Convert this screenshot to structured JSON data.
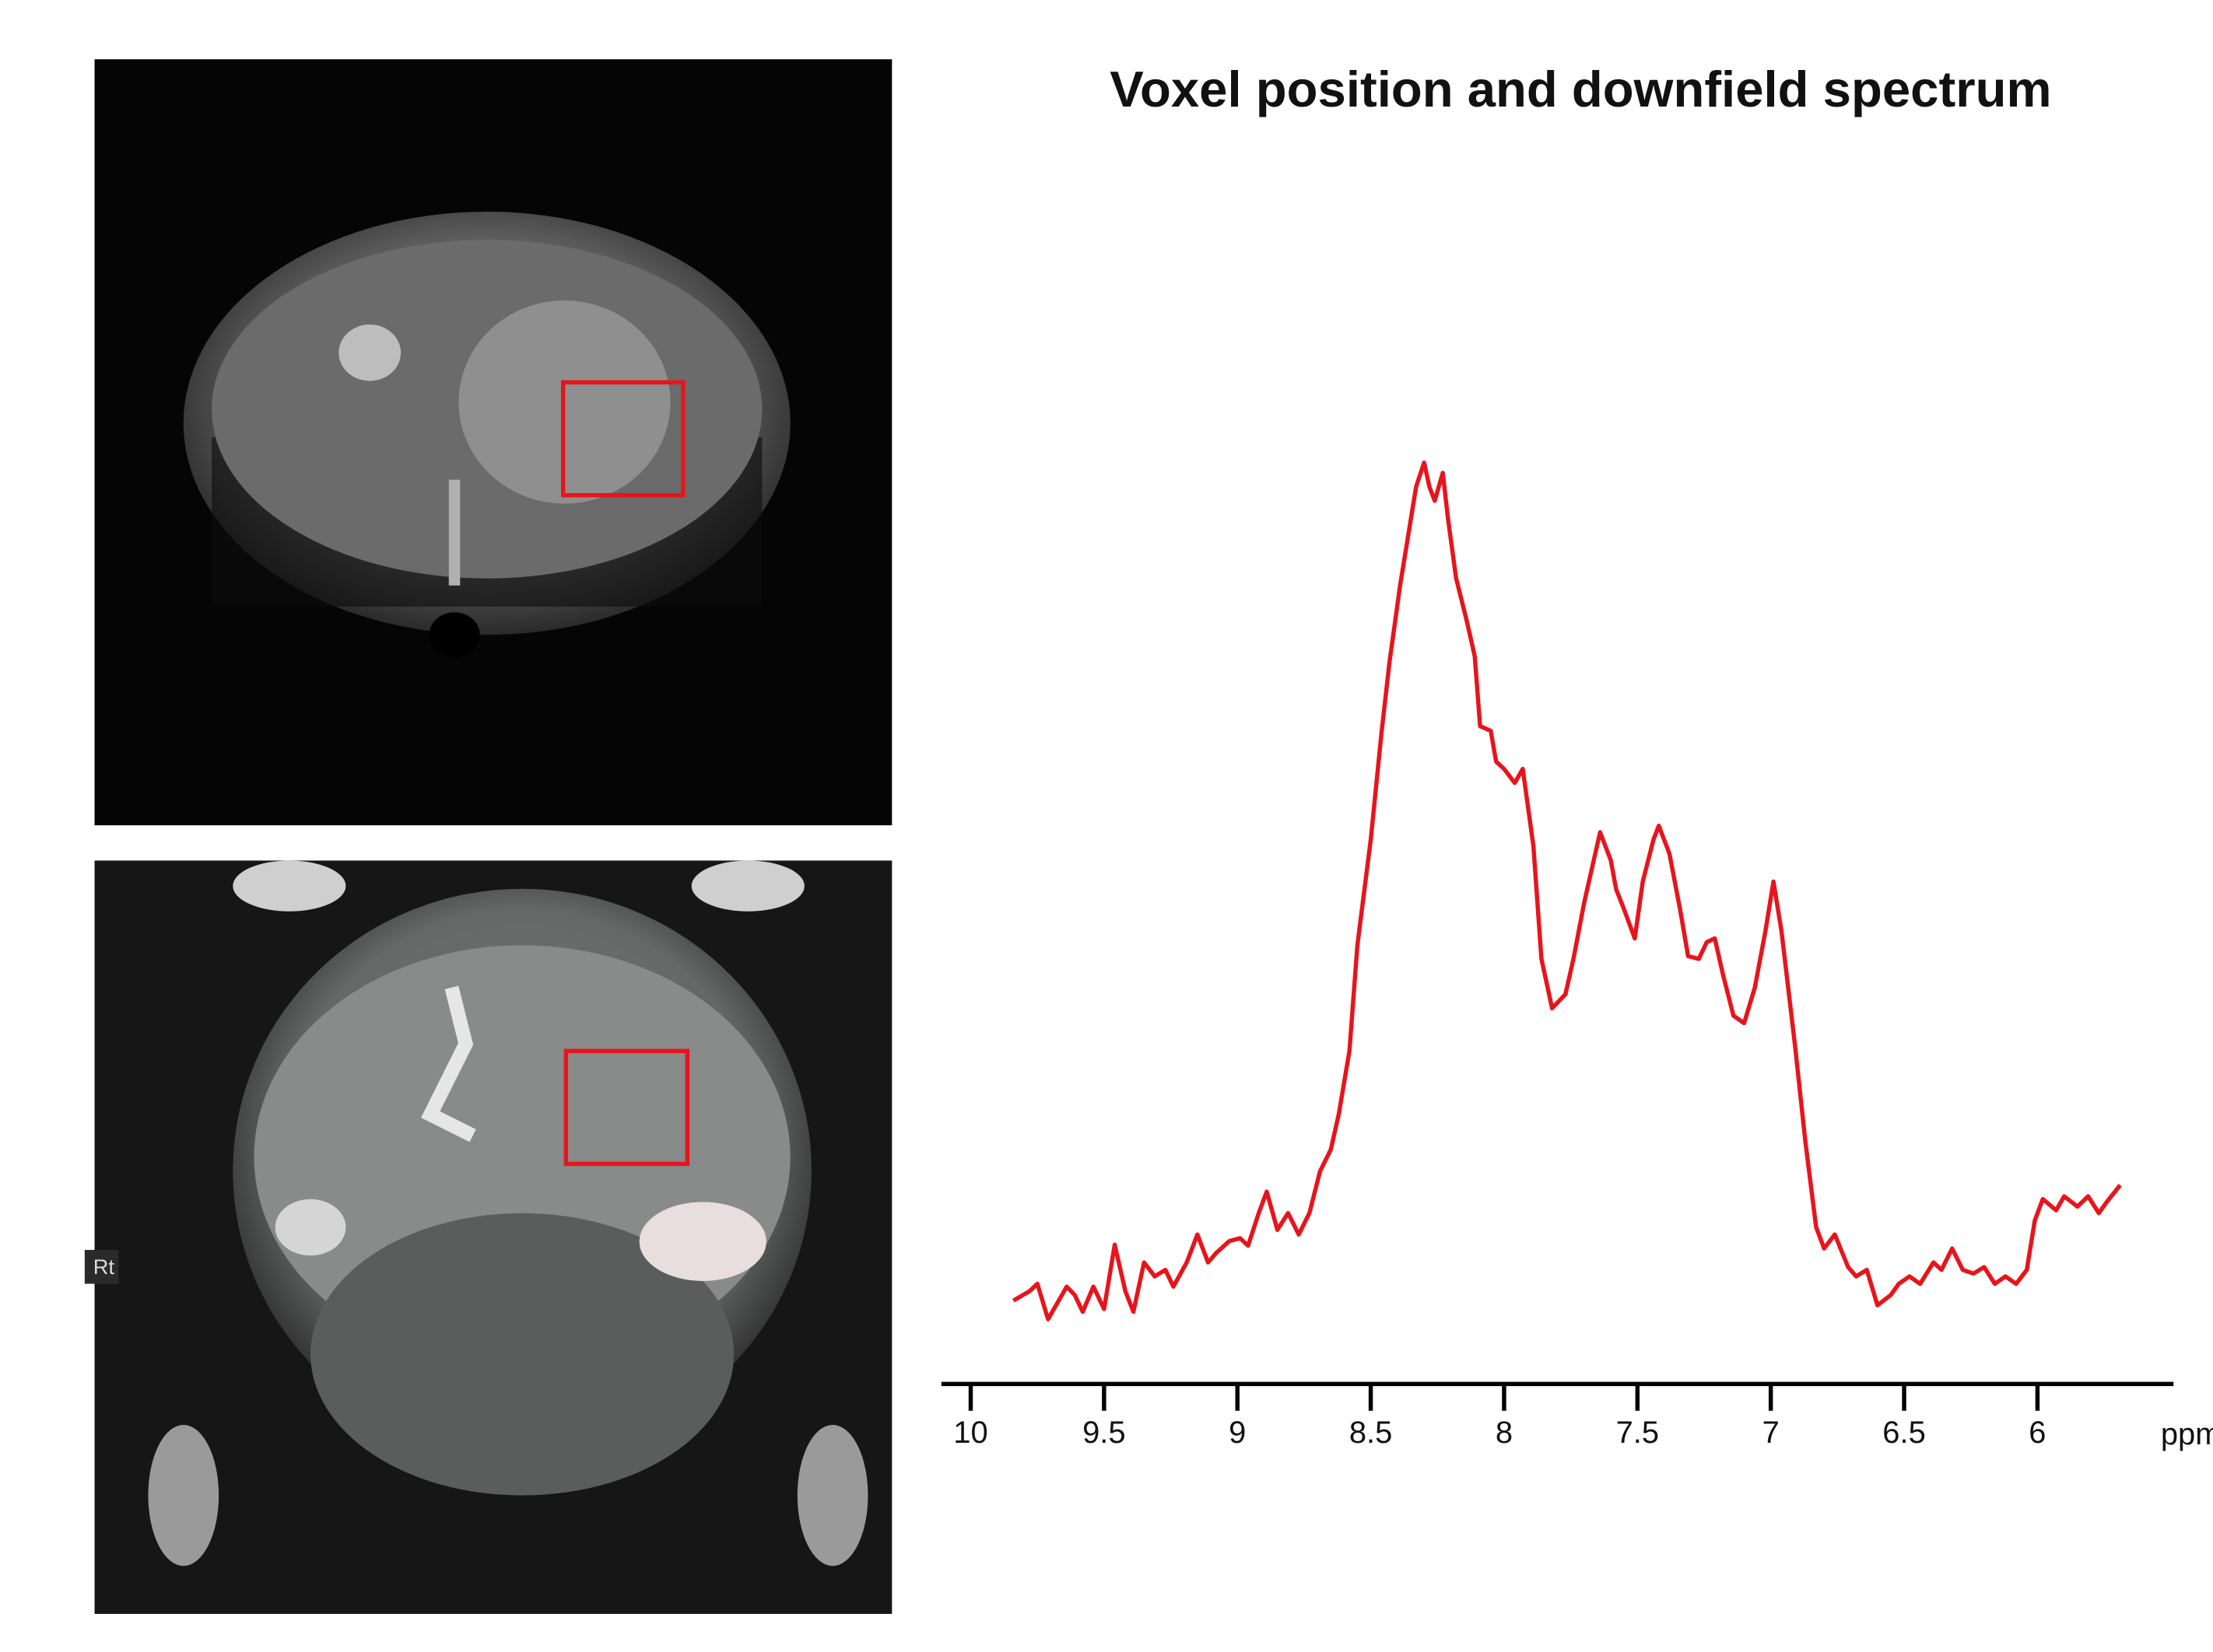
{
  "chart_data": {
    "type": "line",
    "title": "Voxel position and downfield spectrum",
    "x_label": "ppm",
    "annotation": "Rt",
    "color": "#e8141c",
    "xlim": [
      10.11,
      5.49
    ],
    "xticks": [
      10,
      9.5,
      9,
      8.5,
      8,
      7.5,
      7,
      6.5,
      6
    ],
    "ylim": [
      0,
      100
    ],
    "x": [
      9.84,
      9.78,
      9.75,
      9.71,
      9.68,
      9.64,
      9.61,
      9.58,
      9.54,
      9.5,
      9.46,
      9.42,
      9.39,
      9.35,
      9.31,
      9.27,
      9.24,
      9.19,
      9.15,
      9.11,
      9.08,
      9.03,
      8.99,
      8.96,
      8.92,
      8.89,
      8.85,
      8.81,
      8.77,
      8.73,
      8.69,
      8.65,
      8.62,
      8.58,
      8.55,
      8.5,
      8.46,
      8.43,
      8.39,
      8.36,
      8.33,
      8.3,
      8.28,
      8.26,
      8.23,
      8.21,
      8.18,
      8.14,
      8.11,
      8.09,
      8.05,
      8.03,
      8.0,
      7.96,
      7.93,
      7.89,
      7.86,
      7.82,
      7.77,
      7.74,
      7.7,
      7.67,
      7.64,
      7.6,
      7.58,
      7.55,
      7.51,
      7.48,
      7.44,
      7.42,
      7.38,
      7.34,
      7.31,
      7.27,
      7.24,
      7.21,
      7.18,
      7.14,
      7.1,
      7.06,
      7.02,
      6.99,
      6.96,
      6.91,
      6.87,
      6.83,
      6.8,
      6.76,
      6.71,
      6.68,
      6.64,
      6.6,
      6.55,
      6.52,
      6.48,
      6.44,
      6.39,
      6.36,
      6.32,
      6.28,
      6.24,
      6.2,
      6.16,
      6.12,
      6.08,
      6.04,
      6.01,
      5.98,
      5.93,
      5.9,
      5.85,
      5.81,
      5.77,
      5.74,
      5.69
    ],
    "values": [
      8.8,
      9.8,
      10.6,
      6.8,
      8.3,
      10.3,
      9.4,
      7.6,
      10.3,
      7.9,
      14.8,
      9.8,
      7.6,
      12.9,
      11.4,
      12.1,
      10.3,
      12.9,
      15.9,
      12.9,
      13.9,
      15.2,
      15.5,
      14.7,
      18.2,
      20.5,
      16.4,
      18.2,
      15.9,
      18.2,
      22.7,
      25.0,
      28.8,
      35.6,
      47.0,
      58.3,
      69.7,
      77.3,
      85.6,
      90.9,
      96.2,
      98.8,
      96.2,
      94.7,
      97.7,
      92.7,
      86.4,
      81.8,
      78.0,
      70.5,
      70.0,
      66.7,
      65.9,
      64.4,
      65.9,
      57.6,
      45.5,
      40.2,
      41.7,
      45.5,
      51.5,
      55.3,
      59.1,
      56.1,
      53.0,
      50.8,
      47.7,
      53.8,
      58.3,
      59.8,
      56.8,
      50.8,
      45.8,
      45.5,
      47.3,
      47.7,
      43.9,
      39.4,
      38.6,
      42.4,
      48.5,
      53.8,
      48.5,
      36.4,
      25.8,
      16.7,
      14.4,
      15.9,
      12.4,
      11.4,
      12.1,
      8.3,
      9.4,
      10.6,
      11.4,
      10.6,
      12.9,
      12.1,
      14.4,
      12.1,
      11.7,
      12.4,
      10.6,
      11.4,
      10.6,
      12.1,
      17.4,
      19.7,
      18.5,
      20.0,
      18.9,
      20.0,
      18.2,
      19.4,
      21.2
    ]
  }
}
